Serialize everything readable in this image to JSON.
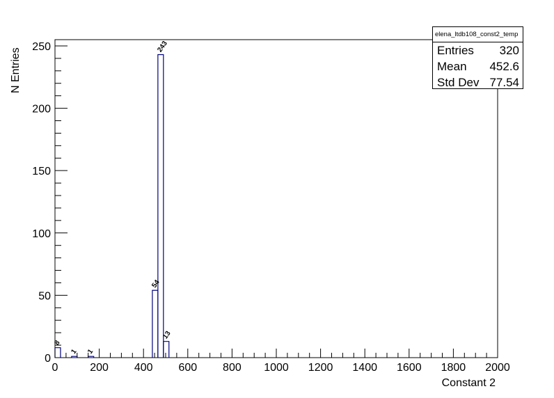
{
  "chart_data": {
    "type": "histogram",
    "title": "",
    "xlabel": "Constant 2",
    "ylabel": "N Entries",
    "xlim": [
      0,
      2000
    ],
    "ylim": [
      0,
      255
    ],
    "x_ticks": [
      0,
      200,
      400,
      600,
      800,
      1000,
      1200,
      1400,
      1600,
      1800,
      2000
    ],
    "y_ticks": [
      0,
      50,
      100,
      150,
      200,
      250
    ],
    "bin_width": 25,
    "line_color": "#000080",
    "bins": [
      {
        "x_low": 0,
        "x_high": 25,
        "count": 8,
        "label": "8"
      },
      {
        "x_low": 75,
        "x_high": 100,
        "count": 1,
        "label": "1"
      },
      {
        "x_low": 150,
        "x_high": 175,
        "count": 1,
        "label": "1"
      },
      {
        "x_low": 440,
        "x_high": 465,
        "count": 54,
        "label": "54"
      },
      {
        "x_low": 465,
        "x_high": 490,
        "count": 243,
        "label": "243"
      },
      {
        "x_low": 490,
        "x_high": 515,
        "count": 13,
        "label": "13"
      }
    ],
    "stats": {
      "name": "elena_ltdb108_const2_temp",
      "entries_label": "Entries",
      "entries": "320",
      "mean_label": "Mean",
      "mean": "452.6",
      "stddev_label": "Std Dev",
      "stddev": "77.54"
    }
  }
}
